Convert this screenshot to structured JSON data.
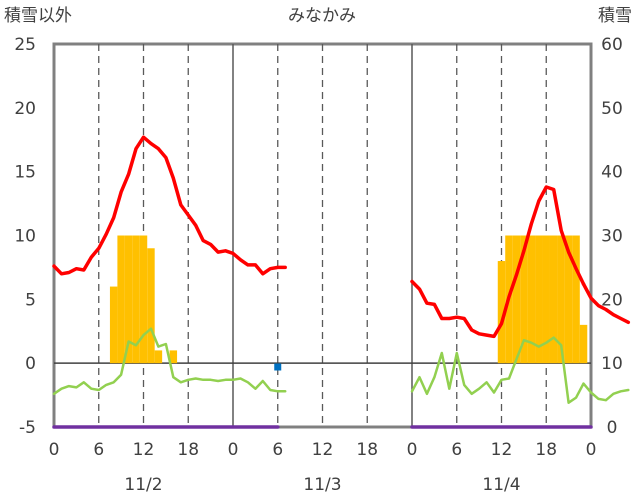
{
  "chart_data": {
    "type": "line",
    "title": "みなかみ",
    "left_axis_label": "積雪以外",
    "right_axis_label": "積雪",
    "left_ylim": [
      -5,
      25
    ],
    "right_ylim": [
      0,
      60
    ],
    "left_yticks": [
      "25",
      "20",
      "15",
      "10",
      "5",
      "0",
      "-5"
    ],
    "right_yticks": [
      "60",
      "50",
      "40",
      "30",
      "20",
      "10",
      "0"
    ],
    "x_hour_range": [
      0,
      72
    ],
    "x_tick_labels": [
      "0",
      "6",
      "12",
      "18",
      "0",
      "6",
      "12",
      "18",
      "0",
      "6",
      "12",
      "18",
      "0"
    ],
    "date_labels": [
      "11/2",
      "11/3",
      "11/4"
    ],
    "grid": "dashed vertical every 6 hours, solid at day boundaries, solid horizontal at 0",
    "colors": {
      "temperature": "#ff0000",
      "precipitation": "#ffc000",
      "wind": "#92d050",
      "snow_depth": "#7030a0",
      "marker": "#0070c0"
    },
    "series": [
      {
        "kind": "temperature",
        "axis": "left",
        "segments": [
          {
            "x": [
              0,
              1,
              2,
              3,
              4,
              5,
              6,
              7,
              8,
              9,
              10,
              11,
              12,
              13,
              14,
              15,
              16,
              17,
              18,
              19,
              20,
              21,
              22,
              23,
              24,
              25,
              26,
              27,
              28,
              29,
              30,
              31
            ],
            "y": [
              7.6,
              7.0,
              7.1,
              7.4,
              7.3,
              8.3,
              9.0,
              10.1,
              11.4,
              13.4,
              14.8,
              16.8,
              17.7,
              17.2,
              16.8,
              16.1,
              14.5,
              12.4,
              11.6,
              10.8,
              9.6,
              9.3,
              8.7,
              8.8,
              8.6,
              8.1,
              7.7,
              7.7,
              7.0,
              7.4,
              7.5,
              7.5
            ]
          },
          {
            "x": [
              48,
              49,
              50,
              51,
              52,
              53,
              54,
              55,
              56,
              57,
              58,
              59,
              60,
              61,
              62,
              63,
              64,
              65,
              66,
              67,
              68,
              69,
              70,
              71
            ],
            "y": [
              6.4,
              5.8,
              4.7,
              4.6,
              3.5,
              3.5,
              3.6,
              3.5,
              2.6,
              2.3,
              2.2,
              2.1,
              3.1,
              5.2,
              6.9,
              8.8,
              10.9,
              12.7,
              13.8,
              13.6,
              10.4,
              8.7,
              7.4,
              6.2
            ]
          },
          {
            "x": [
              71,
              72,
              73,
              74,
              75,
              76,
              77
            ],
            "y": [
              6.2,
              5.1,
              4.5,
              4.2,
              3.8,
              3.5,
              3.2
            ]
          }
        ]
      },
      {
        "kind": "precipitation",
        "axis": "left",
        "bars": [
          {
            "x": 8,
            "v": 6
          },
          {
            "x": 9,
            "v": 10
          },
          {
            "x": 10,
            "v": 10
          },
          {
            "x": 11,
            "v": 10
          },
          {
            "x": 12,
            "v": 10
          },
          {
            "x": 13,
            "v": 9
          },
          {
            "x": 14,
            "v": 1
          },
          {
            "x": 16,
            "v": 1
          },
          {
            "x": 60,
            "v": 8
          },
          {
            "x": 61,
            "v": 10
          },
          {
            "x": 62,
            "v": 10
          },
          {
            "x": 63,
            "v": 10
          },
          {
            "x": 64,
            "v": 10
          },
          {
            "x": 65,
            "v": 10
          },
          {
            "x": 66,
            "v": 10
          },
          {
            "x": 67,
            "v": 10
          },
          {
            "x": 68,
            "v": 10
          },
          {
            "x": 69,
            "v": 10
          },
          {
            "x": 70,
            "v": 10
          },
          {
            "x": 71,
            "v": 3
          }
        ]
      },
      {
        "kind": "wind",
        "axis": "left",
        "segments": [
          {
            "x": [
              0,
              1,
              2,
              3,
              4,
              5,
              6,
              7,
              8,
              9,
              10,
              11,
              12,
              13,
              14,
              15,
              16,
              17,
              18,
              19,
              20,
              21,
              22,
              23,
              24,
              25,
              26,
              27,
              28,
              29,
              30,
              31
            ],
            "y": [
              -2.4,
              -2.0,
              -1.8,
              -1.9,
              -1.5,
              -2.0,
              -2.1,
              -1.7,
              -1.5,
              -0.9,
              1.7,
              1.4,
              2.2,
              2.7,
              1.3,
              1.5,
              -1.1,
              -1.5,
              -1.3,
              -1.2,
              -1.3,
              -1.3,
              -1.4,
              -1.3,
              -1.3,
              -1.2,
              -1.5,
              -2.0,
              -1.4,
              -2.1,
              -2.2,
              -2.2
            ]
          },
          {
            "x": [
              48,
              49,
              50,
              51,
              52,
              53,
              54,
              55,
              56,
              57,
              58,
              59,
              60,
              61,
              62,
              63,
              64,
              65,
              66,
              67,
              68,
              69,
              70,
              71,
              72,
              73,
              74,
              75,
              76,
              77
            ],
            "y": [
              -2.2,
              -1.1,
              -2.4,
              -1.1,
              0.8,
              -2.0,
              0.8,
              -1.7,
              -2.4,
              -2.0,
              -1.5,
              -2.3,
              -1.3,
              -1.2,
              0.3,
              1.8,
              1.6,
              1.3,
              1.6,
              2.0,
              1.4,
              -3.1,
              -2.7,
              -1.6,
              -2.3,
              -2.8,
              -2.9,
              -2.4,
              -2.2,
              -2.1
            ]
          }
        ]
      },
      {
        "kind": "snow_depth",
        "axis": "right",
        "segments": [
          {
            "x": [
              0,
              30
            ],
            "y": [
              0,
              0
            ]
          },
          {
            "x": [
              48,
              72
            ],
            "y": [
              0,
              0
            ]
          }
        ]
      },
      {
        "kind": "marker",
        "axis": "left",
        "points": [
          {
            "x": 30,
            "y": -0.3
          }
        ]
      }
    ]
  }
}
